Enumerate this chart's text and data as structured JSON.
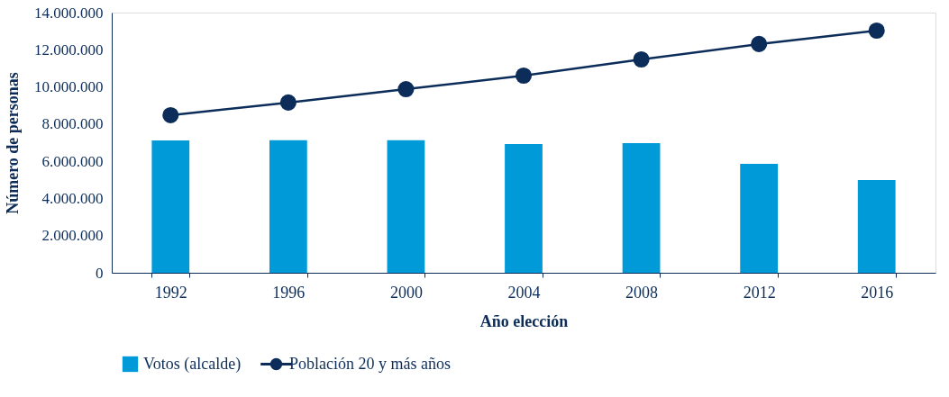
{
  "chart_data": {
    "type": "bar",
    "xlabel": "Año elección",
    "ylabel": "Número de personas",
    "categories": [
      "1992",
      "1996",
      "2000",
      "2004",
      "2008",
      "2012",
      "2016"
    ],
    "series": [
      {
        "name": "Votos (alcalde)",
        "color": "#009ad8",
        "values": [
          7120000,
          7130000,
          7130000,
          6930000,
          6980000,
          5860000,
          4990000
        ]
      },
      {
        "name": "Población 20 y más años",
        "type": "line",
        "color": "#0c2d5a",
        "marker": "circle",
        "values": [
          8480000,
          9160000,
          9880000,
          10610000,
          11480000,
          12310000,
          13030000
        ]
      }
    ],
    "ylim": [
      0,
      14000000
    ],
    "yticks": [
      0,
      {
        "value": 2000000,
        "label": "2.000.000"
      },
      {
        "value": 4000000,
        "label": "4.000.000"
      },
      {
        "value": 6000000,
        "label": "6.000.000"
      },
      {
        "value": 8000000,
        "label": "8.000.000"
      },
      {
        "value": 10000000,
        "label": "10.000.000"
      },
      {
        "value": 12000000,
        "label": "12.000.000"
      },
      {
        "value": 14000000,
        "label": "14.000.000"
      }
    ],
    "grid": false,
    "legend": "bottom"
  }
}
